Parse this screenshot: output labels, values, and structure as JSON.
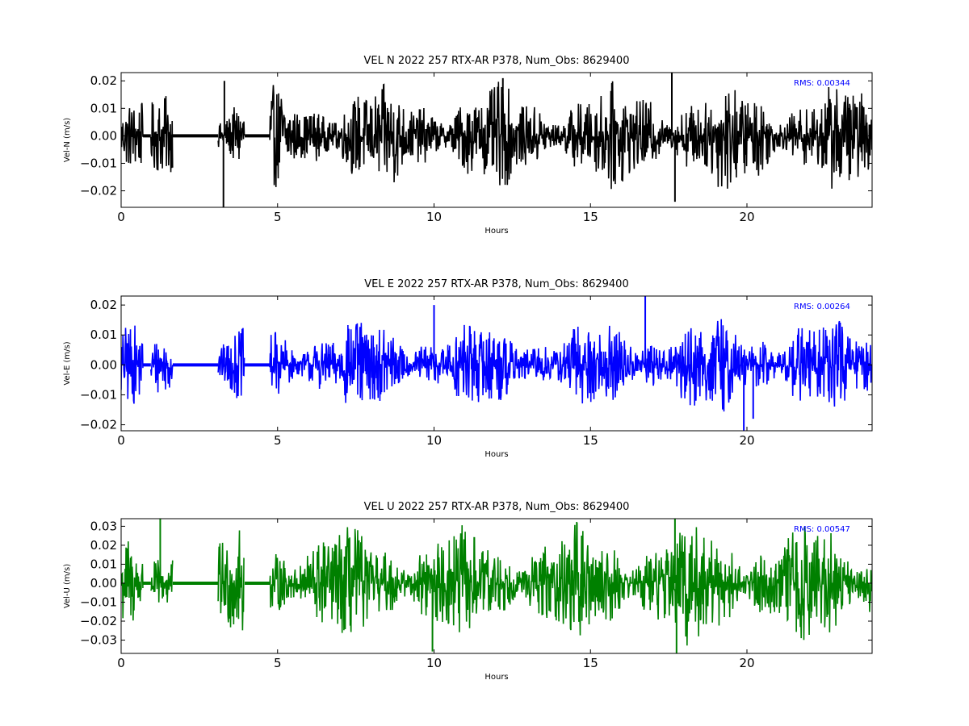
{
  "chart_data": [
    {
      "type": "line",
      "title": "VEL N 2022 257 RTX-AR  P378, Num_Obs: 8629400",
      "xlabel": "Hours",
      "ylabel": "Vel-N (m/s)",
      "xlim": [
        0,
        24
      ],
      "ylim": [
        -0.026,
        0.023
      ],
      "xticks": [
        0,
        5,
        10,
        15,
        20
      ],
      "xtick_labels": [
        "0",
        "5",
        "10",
        "15",
        "20"
      ],
      "yticks": [
        -0.02,
        -0.01,
        0.0,
        0.01,
        0.02
      ],
      "ytick_labels": [
        "−0.02",
        "−0.01",
        "0.00",
        "0.01",
        "0.02"
      ],
      "color": "#000000",
      "annotation": "RMS:  0.00344",
      "annotation_color": "#0000ff",
      "grid": false,
      "segments": [
        {
          "x": [
            0.0,
            0.7
          ],
          "amplitude": 0.012
        },
        {
          "x": [
            0.95,
            1.65
          ],
          "amplitude": 0.013
        },
        {
          "x": [
            3.1,
            3.95
          ],
          "amplitude": 0.014
        },
        {
          "x": [
            4.75,
            16.0
          ],
          "amplitude": 0.016
        },
        {
          "x": [
            16.0,
            24.0
          ],
          "amplitude": 0.017
        }
      ],
      "gaps": [
        [
          0.7,
          0.95
        ],
        [
          1.65,
          3.1
        ],
        [
          3.95,
          4.75
        ]
      ],
      "spikes": [
        {
          "x": 3.27,
          "y": -0.026
        },
        {
          "x": 3.3,
          "y": 0.02
        },
        {
          "x": 12.2,
          "y": 0.021
        },
        {
          "x": 17.6,
          "y": 0.023
        },
        {
          "x": 17.7,
          "y": -0.024
        }
      ]
    },
    {
      "type": "line",
      "title": "VEL E 2022 257 RTX-AR  P378, Num_Obs: 8629400",
      "xlabel": "Hours",
      "ylabel": "Vel-E (m/s)",
      "xlim": [
        0,
        24
      ],
      "ylim": [
        -0.022,
        0.023
      ],
      "xticks": [
        0,
        5,
        10,
        15,
        20
      ],
      "xtick_labels": [
        "0",
        "5",
        "10",
        "15",
        "20"
      ],
      "yticks": [
        -0.02,
        -0.01,
        0.0,
        0.01,
        0.02
      ],
      "ytick_labels": [
        "−0.02",
        "−0.01",
        "0.00",
        "0.01",
        "0.02"
      ],
      "color": "#0000ff",
      "annotation": "RMS:  0.00264",
      "annotation_color": "#0000ff",
      "grid": false,
      "segments": [
        {
          "x": [
            0.0,
            0.7
          ],
          "amplitude": 0.011
        },
        {
          "x": [
            0.95,
            1.65
          ],
          "amplitude": 0.012
        },
        {
          "x": [
            3.1,
            3.95
          ],
          "amplitude": 0.01
        },
        {
          "x": [
            4.75,
            16.0
          ],
          "amplitude": 0.013
        },
        {
          "x": [
            16.0,
            24.0
          ],
          "amplitude": 0.014
        }
      ],
      "gaps": [
        [
          0.7,
          0.95
        ],
        [
          1.65,
          3.1
        ],
        [
          3.95,
          4.75
        ]
      ],
      "spikes": [
        {
          "x": 10.0,
          "y": 0.02
        },
        {
          "x": 16.75,
          "y": 0.023
        },
        {
          "x": 19.9,
          "y": -0.022
        },
        {
          "x": 20.2,
          "y": -0.018
        }
      ]
    },
    {
      "type": "line",
      "title": "VEL U 2022 257 RTX-AR  P378, Num_Obs: 8629400",
      "xlabel": "Hours",
      "ylabel": "Vel-U (m/s)",
      "xlim": [
        0,
        24
      ],
      "ylim": [
        -0.037,
        0.034
      ],
      "xticks": [
        0,
        5,
        10,
        15,
        20
      ],
      "xtick_labels": [
        "0",
        "5",
        "10",
        "15",
        "20"
      ],
      "yticks": [
        -0.03,
        -0.02,
        -0.01,
        0.0,
        0.01,
        0.02,
        0.03
      ],
      "ytick_labels": [
        "−0.03",
        "−0.02",
        "−0.01",
        "0.00",
        "0.01",
        "0.02",
        "0.03"
      ],
      "color": "#008000",
      "annotation": "RMS:  0.00547",
      "annotation_color": "#0000ff",
      "grid": false,
      "segments": [
        {
          "x": [
            0.0,
            0.7
          ],
          "amplitude": 0.022
        },
        {
          "x": [
            0.95,
            1.65
          ],
          "amplitude": 0.026
        },
        {
          "x": [
            3.1,
            3.95
          ],
          "amplitude": 0.024
        },
        {
          "x": [
            4.75,
            16.0
          ],
          "amplitude": 0.026
        },
        {
          "x": [
            16.0,
            24.0
          ],
          "amplitude": 0.028
        }
      ],
      "gaps": [
        [
          0.7,
          0.95
        ],
        [
          1.65,
          3.1
        ],
        [
          3.95,
          4.75
        ]
      ],
      "spikes": [
        {
          "x": 1.25,
          "y": 0.034
        },
        {
          "x": 9.95,
          "y": -0.036
        },
        {
          "x": 17.75,
          "y": -0.037
        },
        {
          "x": 17.7,
          "y": 0.034
        }
      ]
    }
  ]
}
